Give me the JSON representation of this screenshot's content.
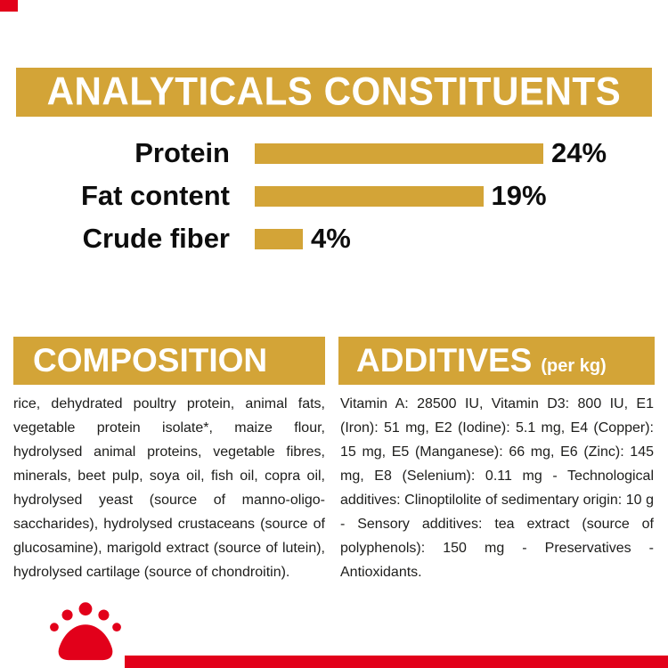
{
  "theme": {
    "gold": "#d3a437",
    "red": "#e2001a",
    "ink": "#1d1d1b",
    "background": "#ffffff"
  },
  "header": {
    "title": "ANALYTICALS CONSTITUENTS"
  },
  "chart_data": {
    "type": "bar",
    "orientation": "horizontal",
    "title": "ANALYTICALS CONSTITUENTS",
    "categories": [
      "Protein",
      "Fat content",
      "Crude fiber"
    ],
    "values": [
      24,
      19,
      4
    ],
    "value_labels": [
      "24%",
      "19%",
      "4%"
    ],
    "unit": "%",
    "xlim": [
      0,
      26
    ],
    "bar_color": "#d3a437",
    "grid": false,
    "legend": false
  },
  "composition": {
    "title": "COMPOSITION",
    "body": "rice, dehydrated poultry protein, animal fats, vegetable protein isolate*, maize flour, hydrolysed animal proteins, vegetable fibres, minerals, beet pulp, soya oil, fish oil, copra oil, hydrolysed yeast (source of manno-oligo-saccharides), hydrolysed crustaceans (source of glucosamine), marigold extract (source of lutein), hydrolysed cartilage (source of chondroitin)."
  },
  "additives": {
    "title": "ADDITIVES",
    "suffix": "(per kg)",
    "body": "Vitamin A: 28500 IU, Vitamin D3: 800 IU, E1 (Iron): 51 mg, E2 (Iodine): 5.1 mg, E4 (Copper): 15 mg, E5 (Manganese): 66 mg, E6 (Zinc): 145 mg, E8 (Selenium): 0.11 mg - Technological additives: Clinoptilolite of sedimentary origin: 10 g - Sensory additives: tea extract (source of polyphenols): 150 mg - Preservatives - Antioxidants."
  },
  "footer": {
    "logo_name": "royal-canin-paw-print"
  }
}
